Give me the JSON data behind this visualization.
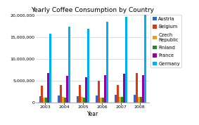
{
  "title": "Yearly Coffee Consumption by Country",
  "xlabel": "Year",
  "years": [
    2003,
    2004,
    2005,
    2006,
    2007,
    2008
  ],
  "legend_labels": [
    "Austria",
    "Belgium",
    "Czech\nRepublic",
    "Finland",
    "France",
    "Germany"
  ],
  "colors": [
    "#3366cc",
    "#dc3912",
    "#ff9900",
    "#109618",
    "#990099",
    "#00b0f0"
  ],
  "data": [
    [
      1400000,
      1600000,
      1500000,
      1600000,
      1800000,
      1800000
    ],
    [
      3800000,
      4000000,
      4000000,
      5000000,
      4000000,
      6700000
    ],
    [
      1100000,
      1200000,
      1300000,
      1100000,
      1200000,
      1200000
    ],
    [
      1100000,
      1100000,
      1100000,
      1100000,
      1200000,
      1200000
    ],
    [
      6700000,
      6100000,
      5800000,
      6200000,
      6500000,
      6300000
    ],
    [
      15800000,
      17300000,
      16800000,
      18500000,
      19600000,
      20000000
    ]
  ],
  "ylim": [
    0,
    20000000
  ],
  "yticks": [
    0,
    5000000,
    10000000,
    15000000,
    20000000
  ],
  "ytick_labels": [
    "0",
    "5,000,000",
    "10,000,000",
    "15,000,000",
    "20,000,000"
  ],
  "bg_color": "#ffffff",
  "grid_color": "#d0d0d0",
  "title_fontsize": 6.5,
  "axis_fontsize": 5.5,
  "tick_fontsize": 4.5,
  "legend_fontsize": 4.8,
  "bar_width": 0.11
}
